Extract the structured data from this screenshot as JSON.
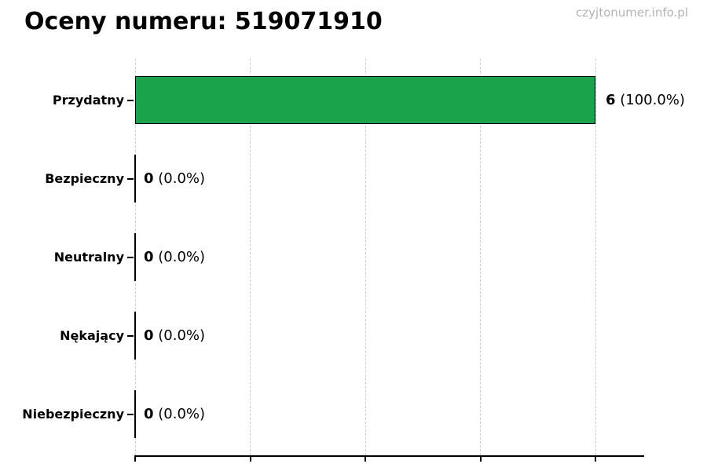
{
  "header": {
    "title": "Oceny numeru: 519071910",
    "watermark": "czyjtonumer.info.pl"
  },
  "chart_data": {
    "type": "bar",
    "orientation": "horizontal",
    "title": "Oceny numeru: 519071910",
    "categories": [
      "Przydatny",
      "Bezpieczny",
      "Neutralny",
      "Nękający",
      "Niebezpieczny"
    ],
    "values": [
      6,
      0,
      0,
      0,
      0
    ],
    "value_labels": [
      {
        "value": "6",
        "pct": "(100.0%)"
      },
      {
        "value": "0",
        "pct": "(0.0%)"
      },
      {
        "value": "0",
        "pct": "(0.0%)"
      },
      {
        "value": "0",
        "pct": "(0.0%)"
      },
      {
        "value": "0",
        "pct": "(0.0%)"
      }
    ],
    "xlim": [
      0,
      6.63
    ],
    "xticks": [
      0,
      1.5,
      3,
      4.5,
      6
    ],
    "xtick_labels_visible": false,
    "grid": "vertical-dashed",
    "legend": "none",
    "colors": {
      "bar_fill": "#1aa34a",
      "bar_edge": "#000000",
      "grid": "#cccccc",
      "axis": "#000000",
      "title_text": "#000000",
      "watermark_text": "#b3b3b3"
    }
  }
}
